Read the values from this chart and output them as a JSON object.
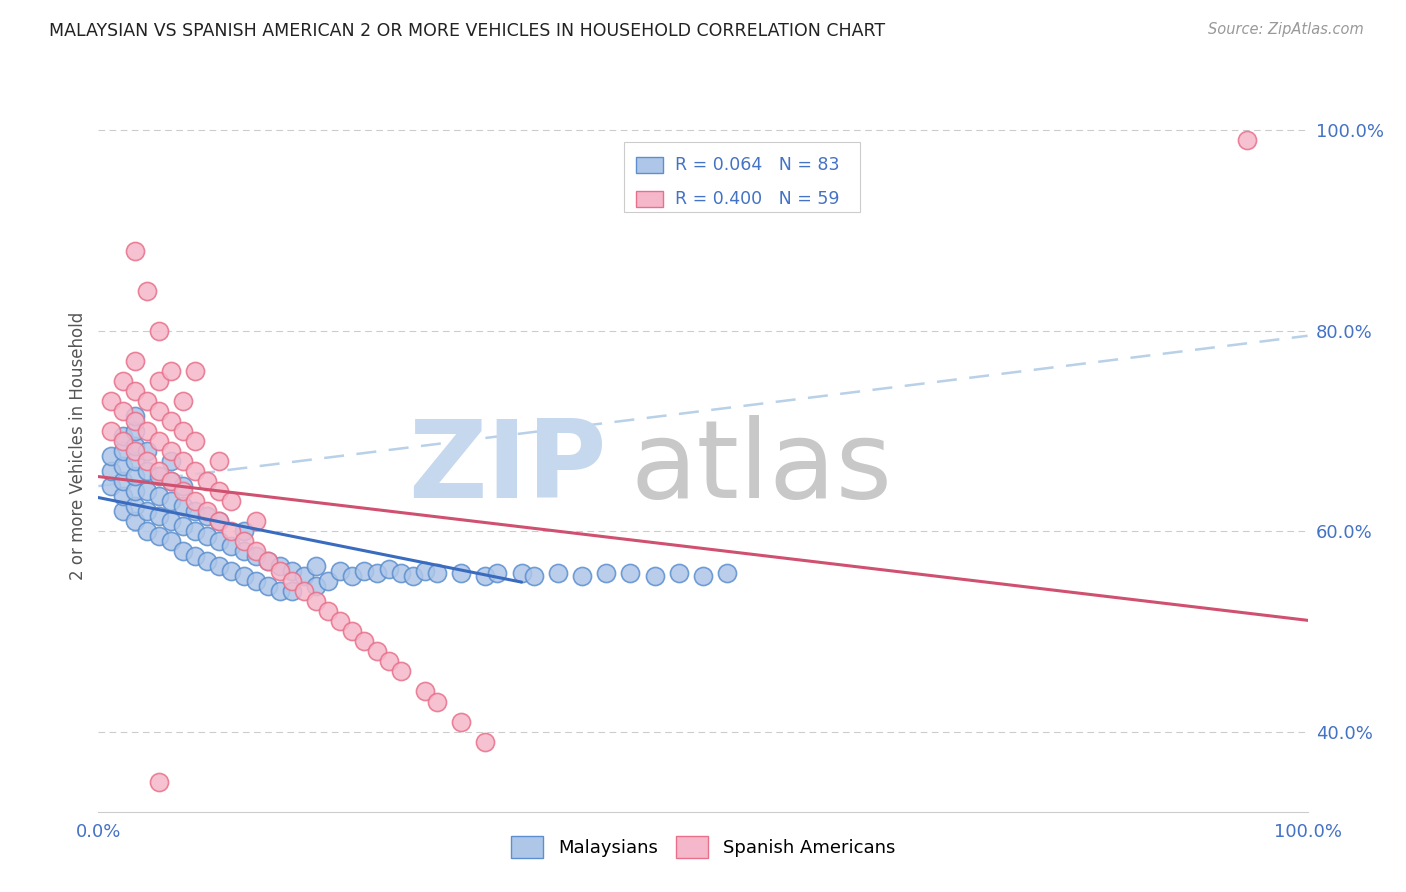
{
  "title": "MALAYSIAN VS SPANISH AMERICAN 2 OR MORE VEHICLES IN HOUSEHOLD CORRELATION CHART",
  "source": "Source: ZipAtlas.com",
  "ylabel": "2 or more Vehicles in Household",
  "xlim": [
    0.0,
    1.0
  ],
  "ylim": [
    0.32,
    1.05
  ],
  "yticks": [
    0.4,
    0.6,
    0.8,
    1.0
  ],
  "ytick_labels": [
    "40.0%",
    "60.0%",
    "80.0%",
    "100.0%"
  ],
  "xtick_labels": [
    "0.0%",
    "100.0%"
  ],
  "legend_r_malaysian": "0.064",
  "legend_n_malaysian": "83",
  "legend_r_spanish": "0.400",
  "legend_n_spanish": "59",
  "malaysian_fill": "#aec6e8",
  "spanish_fill": "#f5b8cb",
  "malaysian_edge": "#5b8fcf",
  "spanish_edge": "#e8708a",
  "malaysian_line": "#3a6bbf",
  "spanish_line": "#d05070",
  "dash_line": "#b8d0e8",
  "grid_color": "#cccccc",
  "background": "#ffffff",
  "watermark_zip_color": "#c5d8ee",
  "watermark_atlas_color": "#c8c8c8",
  "title_color": "#222222",
  "source_color": "#999999",
  "axis_label_color": "#555555",
  "tick_color": "#4472c4",
  "legend_box_edge": "#cccccc",
  "malaysian_x": [
    0.01,
    0.01,
    0.01,
    0.02,
    0.02,
    0.02,
    0.02,
    0.02,
    0.02,
    0.03,
    0.03,
    0.03,
    0.03,
    0.03,
    0.03,
    0.03,
    0.03,
    0.04,
    0.04,
    0.04,
    0.04,
    0.04,
    0.05,
    0.05,
    0.05,
    0.05,
    0.06,
    0.06,
    0.06,
    0.06,
    0.06,
    0.07,
    0.07,
    0.07,
    0.07,
    0.08,
    0.08,
    0.08,
    0.09,
    0.09,
    0.09,
    0.1,
    0.1,
    0.1,
    0.11,
    0.11,
    0.12,
    0.12,
    0.12,
    0.13,
    0.13,
    0.14,
    0.14,
    0.15,
    0.15,
    0.16,
    0.16,
    0.17,
    0.18,
    0.18,
    0.19,
    0.2,
    0.21,
    0.22,
    0.23,
    0.24,
    0.25,
    0.26,
    0.27,
    0.28,
    0.3,
    0.32,
    0.33,
    0.35,
    0.36,
    0.38,
    0.4,
    0.42,
    0.44,
    0.46,
    0.48,
    0.5,
    0.52
  ],
  "malaysian_y": [
    0.645,
    0.66,
    0.675,
    0.62,
    0.635,
    0.65,
    0.665,
    0.68,
    0.695,
    0.61,
    0.625,
    0.64,
    0.655,
    0.67,
    0.685,
    0.7,
    0.715,
    0.6,
    0.62,
    0.64,
    0.66,
    0.68,
    0.595,
    0.615,
    0.635,
    0.655,
    0.59,
    0.61,
    0.63,
    0.65,
    0.67,
    0.58,
    0.605,
    0.625,
    0.645,
    0.575,
    0.6,
    0.62,
    0.57,
    0.595,
    0.615,
    0.565,
    0.59,
    0.61,
    0.56,
    0.585,
    0.555,
    0.58,
    0.6,
    0.55,
    0.575,
    0.545,
    0.57,
    0.54,
    0.565,
    0.54,
    0.56,
    0.555,
    0.545,
    0.565,
    0.55,
    0.56,
    0.555,
    0.56,
    0.558,
    0.562,
    0.558,
    0.555,
    0.56,
    0.558,
    0.558,
    0.555,
    0.558,
    0.558,
    0.555,
    0.558,
    0.555,
    0.558,
    0.558,
    0.555,
    0.558,
    0.555,
    0.558
  ],
  "spanish_x": [
    0.01,
    0.01,
    0.02,
    0.02,
    0.02,
    0.03,
    0.03,
    0.03,
    0.03,
    0.04,
    0.04,
    0.04,
    0.05,
    0.05,
    0.05,
    0.05,
    0.06,
    0.06,
    0.06,
    0.07,
    0.07,
    0.07,
    0.08,
    0.08,
    0.08,
    0.09,
    0.09,
    0.1,
    0.1,
    0.1,
    0.11,
    0.11,
    0.12,
    0.13,
    0.13,
    0.14,
    0.15,
    0.16,
    0.17,
    0.18,
    0.19,
    0.2,
    0.21,
    0.22,
    0.23,
    0.24,
    0.25,
    0.27,
    0.28,
    0.3,
    0.32,
    0.05,
    0.04,
    0.03,
    0.06,
    0.07,
    0.08,
    0.95,
    0.05
  ],
  "spanish_y": [
    0.7,
    0.73,
    0.69,
    0.72,
    0.75,
    0.68,
    0.71,
    0.74,
    0.77,
    0.67,
    0.7,
    0.73,
    0.66,
    0.69,
    0.72,
    0.75,
    0.65,
    0.68,
    0.71,
    0.64,
    0.67,
    0.7,
    0.63,
    0.66,
    0.69,
    0.62,
    0.65,
    0.61,
    0.64,
    0.67,
    0.6,
    0.63,
    0.59,
    0.58,
    0.61,
    0.57,
    0.56,
    0.55,
    0.54,
    0.53,
    0.52,
    0.51,
    0.5,
    0.49,
    0.48,
    0.47,
    0.46,
    0.44,
    0.43,
    0.41,
    0.39,
    0.8,
    0.84,
    0.88,
    0.76,
    0.73,
    0.76,
    0.99,
    0.35
  ]
}
